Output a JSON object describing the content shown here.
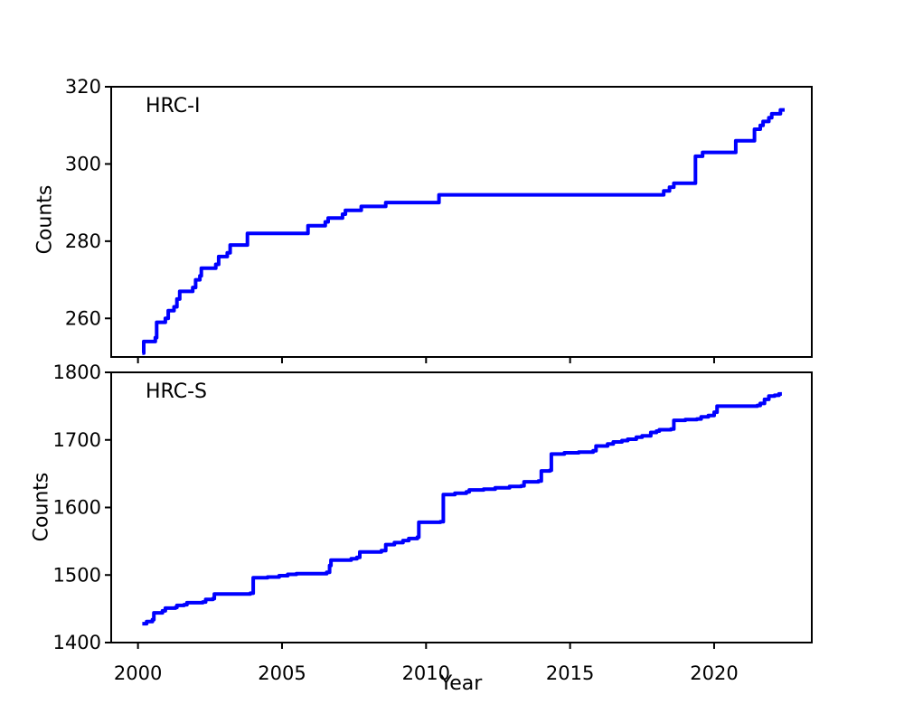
{
  "figure": {
    "background": "#ffffff",
    "xlabel": "Year",
    "line_color": "#0000ff",
    "spine_color": "#000000"
  },
  "chart_data": [
    {
      "type": "line",
      "style": "step-post",
      "label": "HRC-I",
      "ylabel": "Counts",
      "line_color": "#0000ff",
      "xlim": [
        1999.07,
        2023.39
      ],
      "ylim": [
        250,
        320
      ],
      "xticks": [
        2000,
        2005,
        2010,
        2015,
        2020
      ],
      "xtick_labels": [
        "2000",
        "2005",
        "2010",
        "2015",
        "2020"
      ],
      "show_xtick_labels": false,
      "yticks": [
        260,
        280,
        300,
        320
      ],
      "ytick_labels": [
        "260",
        "280",
        "300",
        "320"
      ],
      "grid": false,
      "legend": "none",
      "points": [
        [
          2000.15,
          251
        ],
        [
          2000.2,
          254
        ],
        [
          2000.6,
          255
        ],
        [
          2000.65,
          259
        ],
        [
          2000.95,
          260
        ],
        [
          2001.05,
          262
        ],
        [
          2001.25,
          263
        ],
        [
          2001.35,
          265
        ],
        [
          2001.45,
          267
        ],
        [
          2001.9,
          268
        ],
        [
          2002.0,
          270
        ],
        [
          2002.15,
          271
        ],
        [
          2002.2,
          273
        ],
        [
          2002.7,
          274
        ],
        [
          2002.8,
          276
        ],
        [
          2003.1,
          277
        ],
        [
          2003.2,
          279
        ],
        [
          2003.75,
          279
        ],
        [
          2003.8,
          282
        ],
        [
          2005.8,
          282
        ],
        [
          2005.9,
          284
        ],
        [
          2006.5,
          285
        ],
        [
          2006.6,
          286
        ],
        [
          2007.1,
          287
        ],
        [
          2007.2,
          288
        ],
        [
          2007.75,
          289
        ],
        [
          2008.6,
          290
        ],
        [
          2010.4,
          290
        ],
        [
          2010.45,
          292
        ],
        [
          2018.15,
          292
        ],
        [
          2018.25,
          293
        ],
        [
          2018.45,
          294
        ],
        [
          2018.6,
          295
        ],
        [
          2019.3,
          295
        ],
        [
          2019.35,
          302
        ],
        [
          2019.6,
          303
        ],
        [
          2020.7,
          303
        ],
        [
          2020.75,
          306
        ],
        [
          2021.3,
          306
        ],
        [
          2021.4,
          309
        ],
        [
          2021.6,
          310
        ],
        [
          2021.7,
          311
        ],
        [
          2021.9,
          312
        ],
        [
          2022.0,
          313
        ],
        [
          2022.25,
          313
        ],
        [
          2022.3,
          314
        ],
        [
          2022.45,
          314
        ]
      ]
    },
    {
      "type": "line",
      "style": "step-post",
      "label": "HRC-S",
      "ylabel": "Counts",
      "line_color": "#0000ff",
      "xlim": [
        1999.07,
        2023.39
      ],
      "ylim": [
        1400,
        1800
      ],
      "xticks": [
        2000,
        2005,
        2010,
        2015,
        2020
      ],
      "xtick_labels": [
        "2000",
        "2005",
        "2010",
        "2015",
        "2020"
      ],
      "show_xtick_labels": true,
      "yticks": [
        1400,
        1500,
        1600,
        1700,
        1800
      ],
      "ytick_labels": [
        "1400",
        "1500",
        "1600",
        "1700",
        "1800"
      ],
      "grid": false,
      "legend": "none",
      "points": [
        [
          2000.15,
          1428
        ],
        [
          2000.3,
          1431
        ],
        [
          2000.5,
          1434
        ],
        [
          2000.55,
          1444
        ],
        [
          2000.85,
          1447
        ],
        [
          2000.95,
          1451
        ],
        [
          2001.3,
          1452
        ],
        [
          2001.35,
          1455
        ],
        [
          2001.6,
          1456
        ],
        [
          2001.7,
          1459
        ],
        [
          2002.25,
          1460
        ],
        [
          2002.35,
          1464
        ],
        [
          2002.6,
          1465
        ],
        [
          2002.65,
          1472
        ],
        [
          2003.9,
          1473
        ],
        [
          2004.0,
          1496
        ],
        [
          2004.5,
          1497
        ],
        [
          2004.9,
          1499
        ],
        [
          2005.2,
          1501
        ],
        [
          2005.5,
          1502
        ],
        [
          2006.55,
          1504
        ],
        [
          2006.65,
          1514
        ],
        [
          2006.7,
          1522
        ],
        [
          2007.4,
          1524
        ],
        [
          2007.6,
          1526
        ],
        [
          2007.7,
          1534
        ],
        [
          2008.45,
          1536
        ],
        [
          2008.6,
          1545
        ],
        [
          2008.9,
          1548
        ],
        [
          2009.2,
          1551
        ],
        [
          2009.4,
          1554
        ],
        [
          2009.7,
          1556
        ],
        [
          2009.75,
          1578
        ],
        [
          2010.5,
          1579
        ],
        [
          2010.6,
          1619
        ],
        [
          2011.0,
          1621
        ],
        [
          2011.4,
          1623
        ],
        [
          2011.5,
          1626
        ],
        [
          2012.0,
          1627
        ],
        [
          2012.4,
          1629
        ],
        [
          2012.9,
          1631
        ],
        [
          2013.3,
          1632
        ],
        [
          2013.4,
          1638
        ],
        [
          2013.9,
          1639
        ],
        [
          2014.0,
          1654
        ],
        [
          2014.3,
          1655
        ],
        [
          2014.35,
          1679
        ],
        [
          2014.8,
          1681
        ],
        [
          2015.3,
          1682
        ],
        [
          2015.8,
          1684
        ],
        [
          2015.9,
          1691
        ],
        [
          2016.3,
          1694
        ],
        [
          2016.5,
          1697
        ],
        [
          2016.8,
          1699
        ],
        [
          2017.0,
          1701
        ],
        [
          2017.3,
          1704
        ],
        [
          2017.5,
          1706
        ],
        [
          2017.8,
          1711
        ],
        [
          2018.0,
          1713
        ],
        [
          2018.1,
          1715
        ],
        [
          2018.5,
          1716
        ],
        [
          2018.6,
          1729
        ],
        [
          2019.0,
          1730
        ],
        [
          2019.4,
          1731
        ],
        [
          2019.55,
          1734
        ],
        [
          2019.8,
          1736
        ],
        [
          2020.0,
          1741
        ],
        [
          2020.1,
          1750
        ],
        [
          2021.5,
          1751
        ],
        [
          2021.6,
          1754
        ],
        [
          2021.75,
          1760
        ],
        [
          2021.9,
          1765
        ],
        [
          2022.1,
          1766
        ],
        [
          2022.25,
          1768
        ],
        [
          2022.35,
          1768
        ]
      ]
    }
  ]
}
